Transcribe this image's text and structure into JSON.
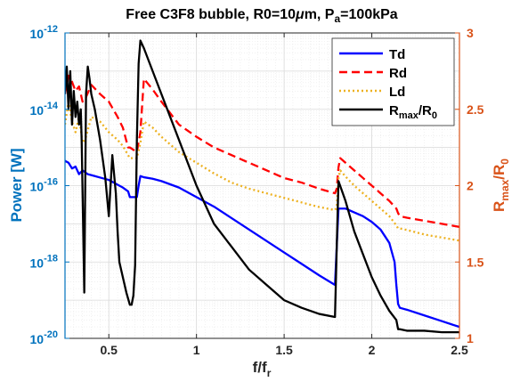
{
  "chart_data": {
    "type": "line",
    "title": "Free C3F8 bubble, R0=10",
    "title_mu": "μ",
    "title_um": "m, P",
    "title_sub": "a",
    "title_end": "=100kPa",
    "xlabel_main": "f/f",
    "xlabel_sub": "r",
    "ylabel_left": "Power [W]",
    "ylabel_right_main": "R",
    "ylabel_right_sub1": "max",
    "ylabel_right_mid": "/R",
    "ylabel_right_sub2": "0",
    "xlim": [
      0.25,
      2.5
    ],
    "ylim_left": [
      1e-20,
      1e-12
    ],
    "ylim_right": [
      1,
      3
    ],
    "yscale_left": "log",
    "grid": true,
    "legend_location": "top-right",
    "colors": {
      "left_axis": "#0072BD",
      "right_axis": "#D95319",
      "Td": "#0000FF",
      "Rd": "#FF0000",
      "Ld": "#EDB120",
      "Rmax": "#000000"
    },
    "x_ticks": [
      "0.5",
      "1",
      "1.5",
      "2",
      "2.5"
    ],
    "x_tick_values": [
      0.5,
      1,
      1.5,
      2,
      2.5
    ],
    "y_ticks_left": [
      {
        "base": "10",
        "exp": "-20",
        "value": -20
      },
      {
        "base": "10",
        "exp": "-18",
        "value": -18
      },
      {
        "base": "10",
        "exp": "-16",
        "value": -16
      },
      {
        "base": "10",
        "exp": "-14",
        "value": -14
      },
      {
        "base": "10",
        "exp": "-12",
        "value": -12
      }
    ],
    "y_ticks_right": [
      "1",
      "1.5",
      "2",
      "2.5",
      "3"
    ],
    "y_tick_values_right": [
      1,
      1.5,
      2,
      2.5,
      3
    ],
    "legend": [
      {
        "id": "Td",
        "label": "Td",
        "style": "solid"
      },
      {
        "id": "Rd",
        "label": "Rd",
        "style": "dashed"
      },
      {
        "id": "Ld",
        "label": "Ld",
        "style": "dotted"
      },
      {
        "id": "Rmax",
        "label_main": "R",
        "label_sub1": "max",
        "label_mid": "/R",
        "label_sub2": "0",
        "style": "solid"
      }
    ],
    "series": [
      {
        "id": "Td",
        "axis": "left",
        "value_scale": "log10",
        "x": [
          0.25,
          0.27,
          0.29,
          0.31,
          0.33,
          0.35,
          0.38,
          0.42,
          0.46,
          0.5,
          0.54,
          0.58,
          0.61,
          0.62,
          0.66,
          0.67,
          0.68,
          0.7,
          0.75,
          0.8,
          0.9,
          1.0,
          1.1,
          1.2,
          1.3,
          1.4,
          1.5,
          1.6,
          1.7,
          1.79,
          1.8,
          1.81,
          1.85,
          1.9,
          1.95,
          2.0,
          2.05,
          2.1,
          2.13,
          2.14,
          2.15,
          2.16,
          2.2,
          2.3,
          2.4,
          2.5
        ],
        "y": [
          -15.35,
          -15.4,
          -15.55,
          -15.5,
          -15.7,
          -15.6,
          -15.7,
          -15.75,
          -15.8,
          -15.85,
          -15.95,
          -16.05,
          -16.15,
          -16.3,
          -16.3,
          -16.0,
          -15.75,
          -15.78,
          -15.82,
          -15.88,
          -16.05,
          -16.3,
          -16.55,
          -16.85,
          -17.15,
          -17.45,
          -17.75,
          -18.05,
          -18.35,
          -18.6,
          -17.6,
          -16.6,
          -16.6,
          -16.7,
          -16.8,
          -16.95,
          -17.15,
          -17.5,
          -18.0,
          -18.6,
          -19.1,
          -19.2,
          -19.25,
          -19.4,
          -19.55,
          -19.7
        ]
      },
      {
        "id": "Rd",
        "axis": "right",
        "x": [
          0.25,
          0.27,
          0.29,
          0.31,
          0.33,
          0.35,
          0.37,
          0.4,
          0.45,
          0.5,
          0.55,
          0.58,
          0.61,
          0.62,
          0.66,
          0.68,
          0.7,
          0.75,
          0.8,
          0.9,
          1.0,
          1.1,
          1.2,
          1.3,
          1.4,
          1.5,
          1.6,
          1.7,
          1.79,
          1.8,
          1.81,
          1.82,
          1.85,
          1.9,
          1.95,
          2.0,
          2.05,
          2.1,
          2.14,
          2.15,
          2.16,
          2.2,
          2.3,
          2.4,
          2.5
        ],
        "y": [
          2.6,
          2.72,
          2.68,
          2.62,
          2.65,
          2.55,
          2.58,
          2.66,
          2.6,
          2.55,
          2.45,
          2.38,
          2.25,
          2.25,
          2.22,
          2.35,
          2.7,
          2.63,
          2.55,
          2.4,
          2.32,
          2.25,
          2.2,
          2.15,
          2.1,
          2.05,
          2.02,
          1.98,
          1.95,
          1.98,
          2.12,
          2.18,
          2.15,
          2.1,
          2.05,
          2.0,
          1.95,
          1.9,
          1.85,
          1.82,
          1.8,
          1.79,
          1.77,
          1.75,
          1.73
        ]
      },
      {
        "id": "Ld",
        "axis": "right",
        "x": [
          0.25,
          0.27,
          0.29,
          0.31,
          0.33,
          0.35,
          0.37,
          0.4,
          0.45,
          0.5,
          0.55,
          0.58,
          0.61,
          0.62,
          0.66,
          0.68,
          0.7,
          0.75,
          0.8,
          0.9,
          1.0,
          1.1,
          1.2,
          1.3,
          1.4,
          1.5,
          1.6,
          1.7,
          1.79,
          1.8,
          1.81,
          1.82,
          1.85,
          1.9,
          1.95,
          2.0,
          2.05,
          2.1,
          2.14,
          2.15,
          2.16,
          2.2,
          2.3,
          2.4,
          2.5
        ],
        "y": [
          2.4,
          2.55,
          2.42,
          2.35,
          2.45,
          2.28,
          2.32,
          2.45,
          2.42,
          2.35,
          2.3,
          2.26,
          2.2,
          2.18,
          2.18,
          2.28,
          2.42,
          2.38,
          2.32,
          2.22,
          2.15,
          2.08,
          2.02,
          1.98,
          1.95,
          1.92,
          1.89,
          1.86,
          1.84,
          1.86,
          2.05,
          2.1,
          2.06,
          2.0,
          1.95,
          1.9,
          1.85,
          1.8,
          1.74,
          1.72,
          1.72,
          1.71,
          1.68,
          1.66,
          1.64
        ]
      },
      {
        "id": "Rmax",
        "axis": "right",
        "x": [
          0.25,
          0.26,
          0.27,
          0.28,
          0.29,
          0.3,
          0.31,
          0.32,
          0.33,
          0.34,
          0.345,
          0.36,
          0.37,
          0.38,
          0.39,
          0.4,
          0.42,
          0.45,
          0.48,
          0.5,
          0.52,
          0.54,
          0.55,
          0.56,
          0.58,
          0.6,
          0.62,
          0.63,
          0.64,
          0.65,
          0.66,
          0.67,
          0.68,
          0.7,
          0.75,
          0.8,
          0.9,
          1.0,
          1.1,
          1.2,
          1.3,
          1.4,
          1.5,
          1.6,
          1.7,
          1.79,
          1.8,
          1.81,
          1.85,
          1.9,
          1.95,
          2.0,
          2.05,
          2.1,
          2.14,
          2.15,
          2.16,
          2.2,
          2.3,
          2.4,
          2.5
        ],
        "y": [
          2.6,
          2.78,
          2.5,
          2.75,
          2.4,
          2.62,
          2.45,
          2.55,
          2.4,
          2.5,
          2.3,
          1.3,
          2.6,
          2.78,
          2.7,
          2.6,
          2.5,
          2.3,
          2.05,
          1.8,
          2.2,
          1.95,
          1.7,
          1.5,
          1.4,
          1.3,
          1.22,
          1.22,
          1.28,
          1.48,
          2.3,
          2.8,
          2.95,
          2.9,
          2.75,
          2.6,
          2.3,
          2.0,
          1.75,
          1.6,
          1.45,
          1.35,
          1.25,
          1.2,
          1.16,
          1.14,
          1.6,
          2.03,
          1.9,
          1.7,
          1.55,
          1.4,
          1.28,
          1.18,
          1.12,
          1.06,
          1.06,
          1.05,
          1.05,
          1.04,
          1.04
        ]
      }
    ]
  }
}
